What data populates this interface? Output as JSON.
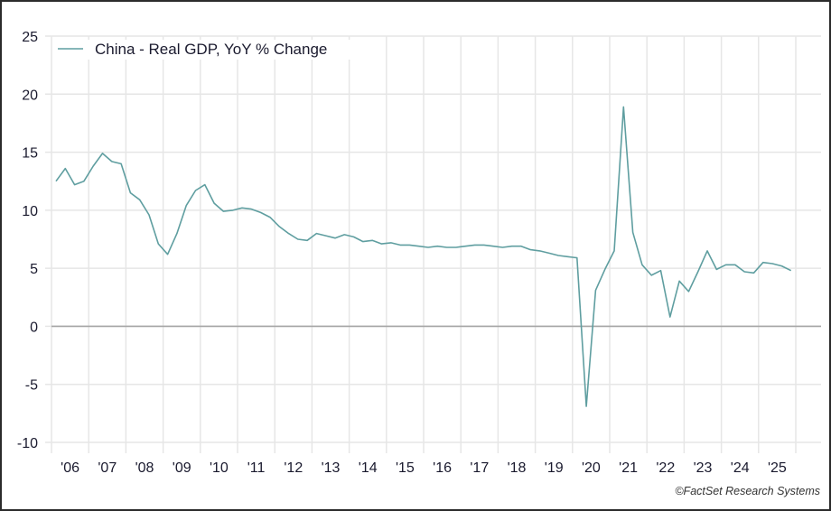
{
  "chart_data": {
    "type": "line",
    "title": "",
    "xlabel": "",
    "ylabel": "",
    "ylim": [
      -10,
      25
    ],
    "yticks": [
      25,
      20,
      15,
      10,
      5,
      0,
      -5,
      -10
    ],
    "xtick_labels": [
      "'06",
      "'07",
      "'08",
      "'09",
      "'10",
      "'11",
      "'12",
      "'13",
      "'14",
      "'15",
      "'16",
      "'17",
      "'18",
      "'19",
      "'20",
      "'21",
      "'22",
      "'23",
      "'24",
      "'25"
    ],
    "grid": true,
    "legend_position": "top-left",
    "series": [
      {
        "name": "China - Real GDP, YoY % Change",
        "color": "#5f9ea0",
        "frequency": "quarterly",
        "start": "2006Q1",
        "values": [
          12.5,
          13.6,
          12.2,
          12.5,
          13.8,
          14.9,
          14.2,
          14.0,
          11.5,
          10.9,
          9.6,
          7.1,
          6.2,
          8.0,
          10.4,
          11.7,
          12.2,
          10.6,
          9.9,
          10.0,
          10.2,
          10.1,
          9.8,
          9.4,
          8.6,
          8.0,
          7.5,
          7.4,
          8.0,
          7.8,
          7.6,
          7.9,
          7.7,
          7.3,
          7.4,
          7.1,
          7.2,
          7.0,
          7.0,
          6.9,
          6.8,
          6.9,
          6.8,
          6.8,
          6.9,
          7.0,
          7.0,
          6.9,
          6.8,
          6.9,
          6.9,
          6.6,
          6.5,
          6.3,
          6.1,
          6.0,
          5.9,
          -6.9,
          3.1,
          4.9,
          6.5,
          18.9,
          8.1,
          5.3,
          4.4,
          4.8,
          0.8,
          3.9,
          3.0,
          4.7,
          6.5,
          4.9,
          5.3,
          5.3,
          4.7,
          4.6,
          5.5,
          5.4,
          5.2,
          4.8
        ]
      }
    ]
  },
  "legend": {
    "label": "China - Real GDP, YoY % Change"
  },
  "footer": {
    "credit": "©FactSet Research Systems"
  }
}
